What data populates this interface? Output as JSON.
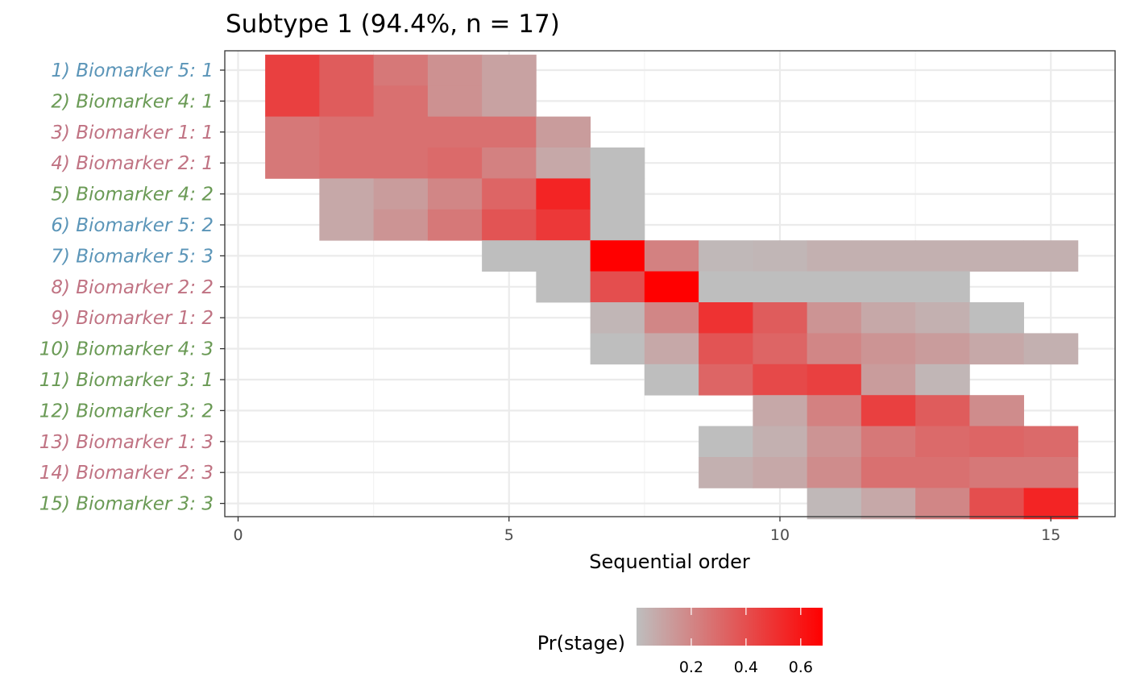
{
  "chart_data": {
    "type": "heatmap",
    "title": "Subtype 1 (94.4%, n = 17)",
    "xlabel": "Sequential order",
    "ylabel": "",
    "xlim": [
      -0.5,
      16.2
    ],
    "x_ticks": [
      0,
      5,
      10,
      15
    ],
    "x_tick_labels": [
      "0",
      "5",
      "10",
      "15"
    ],
    "grid": true,
    "rows": [
      {
        "label": "1) Biomarker 5: 1",
        "color": "#5b95b8"
      },
      {
        "label": "2) Biomarker 4: 1",
        "color": "#6a9a55"
      },
      {
        "label": "3) Biomarker 1: 1",
        "color": "#c07383"
      },
      {
        "label": "4) Biomarker 2: 1",
        "color": "#c07383"
      },
      {
        "label": "5) Biomarker 4: 2",
        "color": "#6a9a55"
      },
      {
        "label": "6) Biomarker 5: 2",
        "color": "#5b95b8"
      },
      {
        "label": "7) Biomarker 5: 3",
        "color": "#5b95b8"
      },
      {
        "label": "8) Biomarker 2: 2",
        "color": "#c07383"
      },
      {
        "label": "9) Biomarker 1: 2",
        "color": "#c07383"
      },
      {
        "label": "10) Biomarker 4: 3",
        "color": "#6a9a55"
      },
      {
        "label": "11) Biomarker 3: 1",
        "color": "#6a9a55"
      },
      {
        "label": "12) Biomarker 3: 2",
        "color": "#6a9a55"
      },
      {
        "label": "13) Biomarker 1: 3",
        "color": "#c07383"
      },
      {
        "label": "14) Biomarker 2: 3",
        "color": "#c07383"
      },
      {
        "label": "15) Biomarker 3: 3",
        "color": "#6a9a55"
      }
    ],
    "cells": [
      [
        [
          1,
          0.45
        ],
        [
          2,
          0.35
        ],
        [
          3,
          0.25
        ],
        [
          4,
          0.16
        ],
        [
          5,
          0.1
        ]
      ],
      [
        [
          1,
          0.45
        ],
        [
          2,
          0.35
        ],
        [
          3,
          0.28
        ],
        [
          4,
          0.16
        ],
        [
          5,
          0.1
        ]
      ],
      [
        [
          1,
          0.25
        ],
        [
          2,
          0.28
        ],
        [
          3,
          0.28
        ],
        [
          4,
          0.28
        ],
        [
          5,
          0.28
        ],
        [
          6,
          0.12
        ]
      ],
      [
        [
          1,
          0.25
        ],
        [
          2,
          0.28
        ],
        [
          3,
          0.28
        ],
        [
          4,
          0.3
        ],
        [
          5,
          0.22
        ],
        [
          6,
          0.08
        ],
        [
          7,
          0.0
        ]
      ],
      [
        [
          2,
          0.08
        ],
        [
          3,
          0.12
        ],
        [
          4,
          0.2
        ],
        [
          5,
          0.32
        ],
        [
          6,
          0.55
        ],
        [
          7,
          0.0
        ]
      ],
      [
        [
          2,
          0.08
        ],
        [
          3,
          0.15
        ],
        [
          4,
          0.25
        ],
        [
          5,
          0.38
        ],
        [
          6,
          0.48
        ],
        [
          7,
          0.0
        ]
      ],
      [
        [
          5,
          0.0
        ],
        [
          6,
          0.0
        ],
        [
          7,
          0.68
        ],
        [
          8,
          0.22
        ],
        [
          9,
          0.02
        ],
        [
          10,
          0.03
        ],
        [
          11,
          0.05
        ],
        [
          12,
          0.05
        ],
        [
          13,
          0.05
        ],
        [
          14,
          0.05
        ],
        [
          15,
          0.05
        ]
      ],
      [
        [
          6,
          0.0
        ],
        [
          7,
          0.4
        ],
        [
          8,
          0.68
        ],
        [
          9,
          0.0
        ],
        [
          10,
          0.0
        ],
        [
          11,
          0.0
        ],
        [
          12,
          0.0
        ],
        [
          13,
          0.0
        ]
      ],
      [
        [
          7,
          0.03
        ],
        [
          8,
          0.2
        ],
        [
          9,
          0.5
        ],
        [
          10,
          0.35
        ],
        [
          11,
          0.15
        ],
        [
          12,
          0.08
        ],
        [
          13,
          0.05
        ],
        [
          14,
          0.0
        ]
      ],
      [
        [
          7,
          0.0
        ],
        [
          8,
          0.08
        ],
        [
          9,
          0.38
        ],
        [
          10,
          0.32
        ],
        [
          11,
          0.2
        ],
        [
          12,
          0.15
        ],
        [
          13,
          0.12
        ],
        [
          14,
          0.08
        ],
        [
          15,
          0.05
        ]
      ],
      [
        [
          8,
          0.0
        ],
        [
          9,
          0.32
        ],
        [
          10,
          0.42
        ],
        [
          11,
          0.45
        ],
        [
          12,
          0.12
        ],
        [
          13,
          0.03
        ]
      ],
      [
        [
          10,
          0.08
        ],
        [
          11,
          0.22
        ],
        [
          12,
          0.45
        ],
        [
          13,
          0.35
        ],
        [
          14,
          0.18
        ]
      ],
      [
        [
          9,
          0.0
        ],
        [
          10,
          0.05
        ],
        [
          11,
          0.15
        ],
        [
          12,
          0.25
        ],
        [
          13,
          0.3
        ],
        [
          14,
          0.32
        ],
        [
          15,
          0.3
        ]
      ],
      [
        [
          9,
          0.05
        ],
        [
          10,
          0.08
        ],
        [
          11,
          0.18
        ],
        [
          12,
          0.28
        ],
        [
          13,
          0.28
        ],
        [
          14,
          0.25
        ],
        [
          15,
          0.25
        ]
      ],
      [
        [
          11,
          0.02
        ],
        [
          12,
          0.08
        ],
        [
          13,
          0.2
        ],
        [
          14,
          0.4
        ],
        [
          15,
          0.55
        ]
      ]
    ],
    "colorscale": {
      "low": "#bebebe",
      "high": "#ff0000",
      "min": 0.0,
      "max": 0.68
    },
    "legend": {
      "title": "Pr(stage)",
      "position": "bottom",
      "ticks": [
        0.2,
        0.4,
        0.6
      ],
      "tick_labels": [
        "0.2",
        "0.4",
        "0.6"
      ]
    }
  }
}
